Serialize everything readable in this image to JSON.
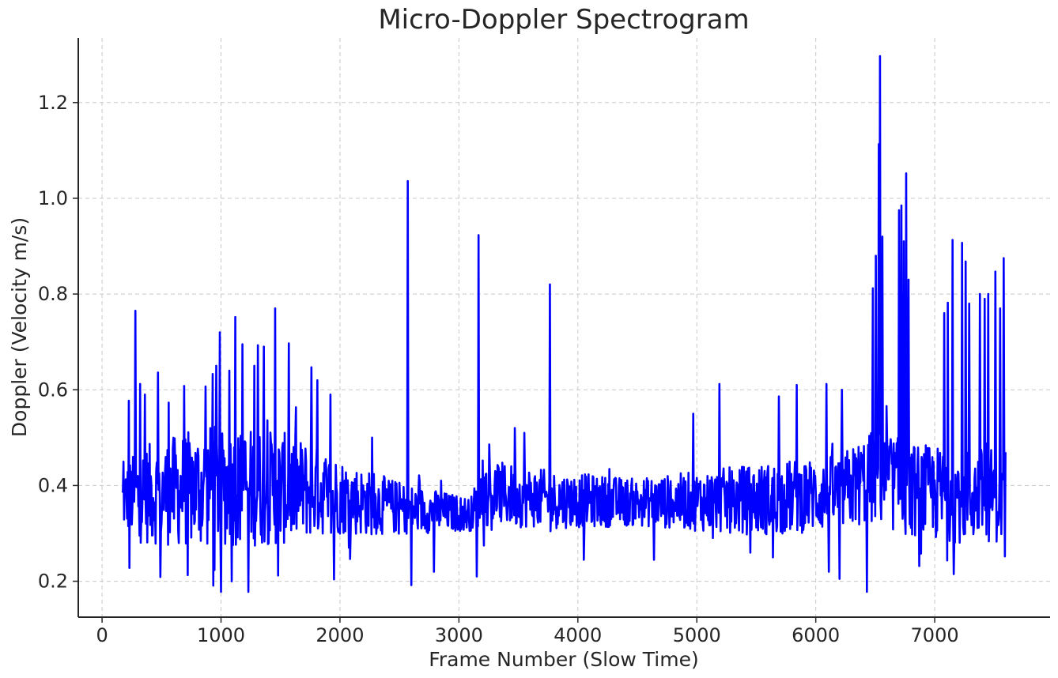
{
  "chart_data": {
    "type": "line",
    "title": "Micro-Doppler Spectrogram",
    "xlabel": "Frame Number (Slow Time)",
    "ylabel": "Doppler (Velocity m/s)",
    "xlim": [
      -200,
      7970
    ],
    "ylim": [
      0.125,
      1.335
    ],
    "xticks": [
      0,
      1000,
      2000,
      3000,
      4000,
      5000,
      6000,
      7000
    ],
    "xtick_labels": [
      "0",
      "1000",
      "2000",
      "3000",
      "4000",
      "5000",
      "6000",
      "7000"
    ],
    "yticks": [
      0.2,
      0.4,
      0.6,
      0.8,
      1.0,
      1.2
    ],
    "ytick_labels": [
      "0.2",
      "0.4",
      "0.6",
      "0.8",
      "1.0",
      "1.2"
    ],
    "grid": true,
    "color": "#0000ff",
    "series": [
      {
        "name": "doppler",
        "x_start": 170,
        "x_end": 7595,
        "step": 5,
        "baseline": [
          [
            170,
            0.37
          ],
          [
            300,
            0.38
          ],
          [
            1000,
            0.4
          ],
          [
            1800,
            0.39
          ],
          [
            2200,
            0.365
          ],
          [
            2600,
            0.35
          ],
          [
            3100,
            0.34
          ],
          [
            3200,
            0.385
          ],
          [
            3800,
            0.37
          ],
          [
            4500,
            0.365
          ],
          [
            5500,
            0.37
          ],
          [
            6200,
            0.385
          ],
          [
            6500,
            0.42
          ],
          [
            6800,
            0.39
          ],
          [
            7100,
            0.38
          ],
          [
            7595,
            0.38
          ]
        ],
        "amplitude": [
          [
            170,
            0.06
          ],
          [
            300,
            0.1
          ],
          [
            900,
            0.13
          ],
          [
            1500,
            0.12
          ],
          [
            2000,
            0.08
          ],
          [
            2500,
            0.055
          ],
          [
            3100,
            0.035
          ],
          [
            3200,
            0.07
          ],
          [
            3800,
            0.06
          ],
          [
            4500,
            0.05
          ],
          [
            5500,
            0.075
          ],
          [
            6200,
            0.08
          ],
          [
            6500,
            0.1
          ],
          [
            7100,
            0.1
          ],
          [
            7595,
            0.1
          ]
        ],
        "spikes": [
          {
            "x": 180,
            "y": 0.45
          },
          {
            "x": 225,
            "y": 0.577
          },
          {
            "x": 230,
            "y": 0.228
          },
          {
            "x": 280,
            "y": 0.765
          },
          {
            "x": 320,
            "y": 0.612
          },
          {
            "x": 360,
            "y": 0.59
          },
          {
            "x": 470,
            "y": 0.636
          },
          {
            "x": 490,
            "y": 0.209
          },
          {
            "x": 560,
            "y": 0.573
          },
          {
            "x": 690,
            "y": 0.608
          },
          {
            "x": 720,
            "y": 0.213
          },
          {
            "x": 870,
            "y": 0.607
          },
          {
            "x": 930,
            "y": 0.633
          },
          {
            "x": 935,
            "y": 0.191
          },
          {
            "x": 960,
            "y": 0.65
          },
          {
            "x": 990,
            "y": 0.72
          },
          {
            "x": 1000,
            "y": 0.178
          },
          {
            "x": 1070,
            "y": 0.64
          },
          {
            "x": 1090,
            "y": 0.2
          },
          {
            "x": 1120,
            "y": 0.752
          },
          {
            "x": 1180,
            "y": 0.695
          },
          {
            "x": 1230,
            "y": 0.178
          },
          {
            "x": 1280,
            "y": 0.65
          },
          {
            "x": 1310,
            "y": 0.693
          },
          {
            "x": 1360,
            "y": 0.69
          },
          {
            "x": 1455,
            "y": 0.77
          },
          {
            "x": 1480,
            "y": 0.212
          },
          {
            "x": 1570,
            "y": 0.697
          },
          {
            "x": 1760,
            "y": 0.647
          },
          {
            "x": 1810,
            "y": 0.62
          },
          {
            "x": 1920,
            "y": 0.59
          },
          {
            "x": 1950,
            "y": 0.204
          },
          {
            "x": 2270,
            "y": 0.5
          },
          {
            "x": 2570,
            "y": 1.036
          },
          {
            "x": 2600,
            "y": 0.192
          },
          {
            "x": 2790,
            "y": 0.22
          },
          {
            "x": 2850,
            "y": 0.41
          },
          {
            "x": 3150,
            "y": 0.21
          },
          {
            "x": 3165,
            "y": 0.923
          },
          {
            "x": 3470,
            "y": 0.52
          },
          {
            "x": 3550,
            "y": 0.51
          },
          {
            "x": 3765,
            "y": 0.82
          },
          {
            "x": 4050,
            "y": 0.245
          },
          {
            "x": 4640,
            "y": 0.245
          },
          {
            "x": 4970,
            "y": 0.55
          },
          {
            "x": 5190,
            "y": 0.612
          },
          {
            "x": 5640,
            "y": 0.25
          },
          {
            "x": 5690,
            "y": 0.586
          },
          {
            "x": 5840,
            "y": 0.61
          },
          {
            "x": 6090,
            "y": 0.612
          },
          {
            "x": 6110,
            "y": 0.22
          },
          {
            "x": 6200,
            "y": 0.205
          },
          {
            "x": 6220,
            "y": 0.6
          },
          {
            "x": 6430,
            "y": 0.178
          },
          {
            "x": 6480,
            "y": 0.812
          },
          {
            "x": 6505,
            "y": 0.88
          },
          {
            "x": 6530,
            "y": 1.113
          },
          {
            "x": 6540,
            "y": 1.297
          },
          {
            "x": 6560,
            "y": 0.92
          },
          {
            "x": 6700,
            "y": 0.975
          },
          {
            "x": 6720,
            "y": 0.985
          },
          {
            "x": 6740,
            "y": 0.91
          },
          {
            "x": 6760,
            "y": 1.052
          },
          {
            "x": 6780,
            "y": 0.83
          },
          {
            "x": 6870,
            "y": 0.232
          },
          {
            "x": 7080,
            "y": 0.76
          },
          {
            "x": 7110,
            "y": 0.782
          },
          {
            "x": 7150,
            "y": 0.913
          },
          {
            "x": 7160,
            "y": 0.215
          },
          {
            "x": 7230,
            "y": 0.907
          },
          {
            "x": 7260,
            "y": 0.868
          },
          {
            "x": 7290,
            "y": 0.78
          },
          {
            "x": 7380,
            "y": 0.8
          },
          {
            "x": 7420,
            "y": 0.79
          },
          {
            "x": 7450,
            "y": 0.8
          },
          {
            "x": 7510,
            "y": 0.847
          },
          {
            "x": 7550,
            "y": 0.77
          },
          {
            "x": 7580,
            "y": 0.875
          },
          {
            "x": 7590,
            "y": 0.252
          }
        ]
      }
    ]
  }
}
